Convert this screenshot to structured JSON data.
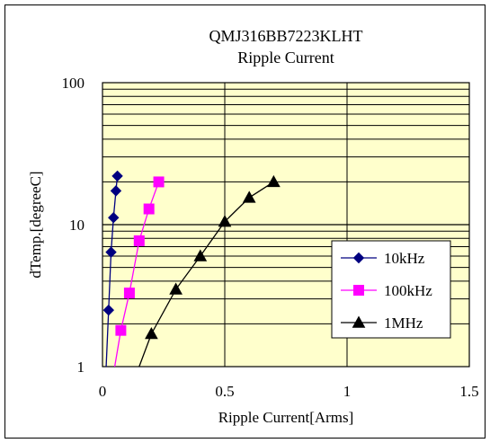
{
  "chart_data": {
    "type": "scatter",
    "title": "QMJ316BB7223KLHT",
    "subtitle": "Ripple Current",
    "xlabel": "Ripple Current[Arms]",
    "ylabel": "dTemp.[degreeC]",
    "xlim": [
      0,
      1.5
    ],
    "ylim": [
      1,
      100
    ],
    "yscale": "log",
    "xticks": [
      "0",
      "0.5",
      "1",
      "1.5"
    ],
    "yticks": [
      "1",
      "10",
      "100"
    ],
    "grid": true,
    "legend_position": "right",
    "plot_background": "#ffffcc",
    "series": [
      {
        "name": "10kHz",
        "color": "#000080",
        "marker": "diamond",
        "x": [
          0.015,
          0.025,
          0.035,
          0.045,
          0.055,
          0.0608
        ],
        "y": [
          1,
          2.5,
          6.4,
          11.2,
          17.3,
          22
        ]
      },
      {
        "name": "100kHz",
        "color": "#ff00ff",
        "marker": "square",
        "x": [
          0.05,
          0.075,
          0.11,
          0.15,
          0.19,
          0.23
        ],
        "y": [
          1,
          1.8,
          3.3,
          7.7,
          12.9,
          20
        ]
      },
      {
        "name": "1MHz",
        "color": "#000000",
        "marker": "triangle",
        "x": [
          0.15,
          0.2,
          0.3,
          0.4,
          0.5,
          0.6,
          0.7
        ],
        "y": [
          1,
          1.7,
          3.5,
          6,
          10.5,
          15.5,
          20
        ]
      }
    ]
  }
}
